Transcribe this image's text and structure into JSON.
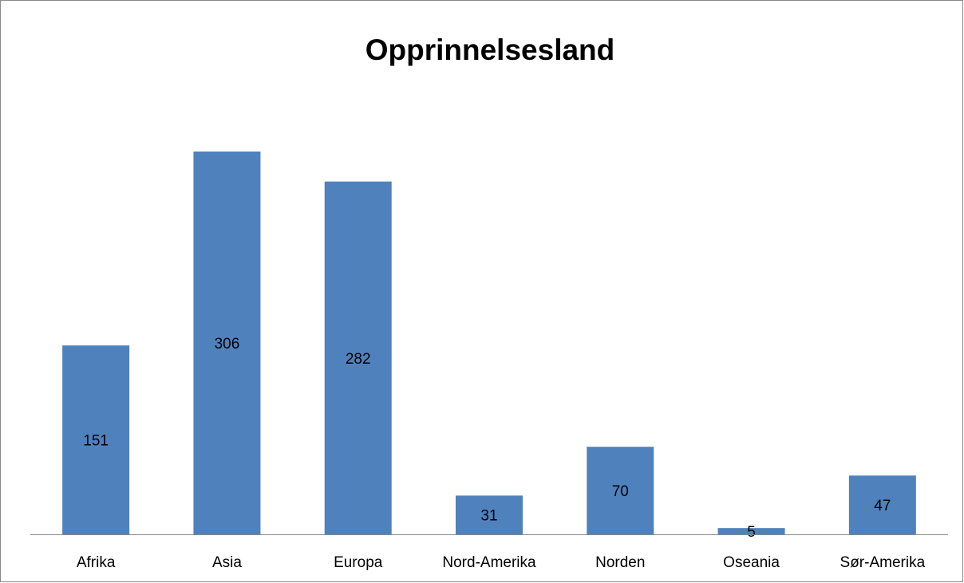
{
  "chart_data": {
    "type": "bar",
    "title": "Opprinnelsesland",
    "categories": [
      "Afrika",
      "Asia",
      "Europa",
      "Nord-Amerika",
      "Norden",
      "Oseania",
      "Sør-Amerika"
    ],
    "values": [
      151,
      306,
      282,
      31,
      70,
      5,
      47
    ],
    "color": "#4f81bd"
  }
}
